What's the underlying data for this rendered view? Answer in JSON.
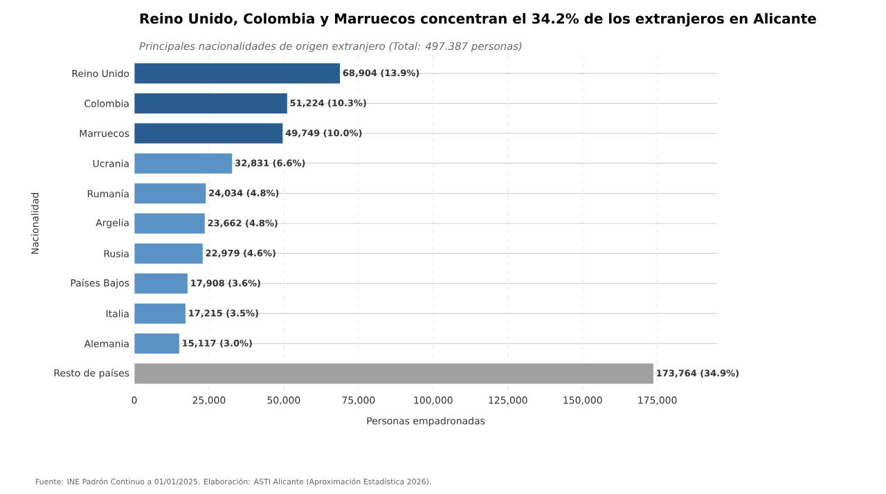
{
  "chart_data": {
    "type": "bar",
    "orientation": "horizontal",
    "title": "Reino Unido, Colombia y Marruecos concentran el 34.2% de los extranjeros en Alicante",
    "subtitle": "Principales nacionalidades de origen extranjero (Total: 497.387 personas)",
    "xlabel": "Personas empadronadas",
    "ylabel": "Nacionalidad",
    "categories": [
      "Reino Unido",
      "Colombia",
      "Marruecos",
      "Ucrania",
      "Rumanía",
      "Argelia",
      "Rusia",
      "Países Bajos",
      "Italia",
      "Alemania",
      "Resto de países"
    ],
    "values": [
      68904,
      51224,
      49749,
      32831,
      24034,
      23662,
      22979,
      17908,
      17215,
      15117,
      173764
    ],
    "value_labels": [
      "68,904 (13.9%)",
      "51,224 (10.3%)",
      "49,749 (10.0%)",
      "32,831 (6.6%)",
      "24,034 (4.8%)",
      "23,662 (4.8%)",
      "22,979 (4.6%)",
      "17,908 (3.6%)",
      "17,215 (3.5%)",
      "15,117 (3.0%)",
      "173,764 (34.9%)"
    ],
    "colors": [
      "#2a5d8f",
      "#2a5d8f",
      "#2a5d8f",
      "#5b92c6",
      "#5b92c6",
      "#5b92c6",
      "#5b92c6",
      "#5b92c6",
      "#5b92c6",
      "#5b92c6",
      "#a0a0a0"
    ],
    "xlim": [
      0,
      195000
    ],
    "xticks": [
      {
        "value": 0,
        "label": "0"
      },
      {
        "value": 25000,
        "label": "25,000"
      },
      {
        "value": 50000,
        "label": "50,000"
      },
      {
        "value": 75000,
        "label": "75,000"
      },
      {
        "value": 100000,
        "label": "100,000"
      },
      {
        "value": 125000,
        "label": "125,000"
      },
      {
        "value": 150000,
        "label": "150,000"
      },
      {
        "value": 175000,
        "label": "175,000"
      }
    ],
    "grid": true,
    "annotations": [
      "Fuente: INE Padrón Continuo a 01/01/2025. Elaboración: ASTI Alicante (Aproximación Estadística 2026)."
    ]
  }
}
